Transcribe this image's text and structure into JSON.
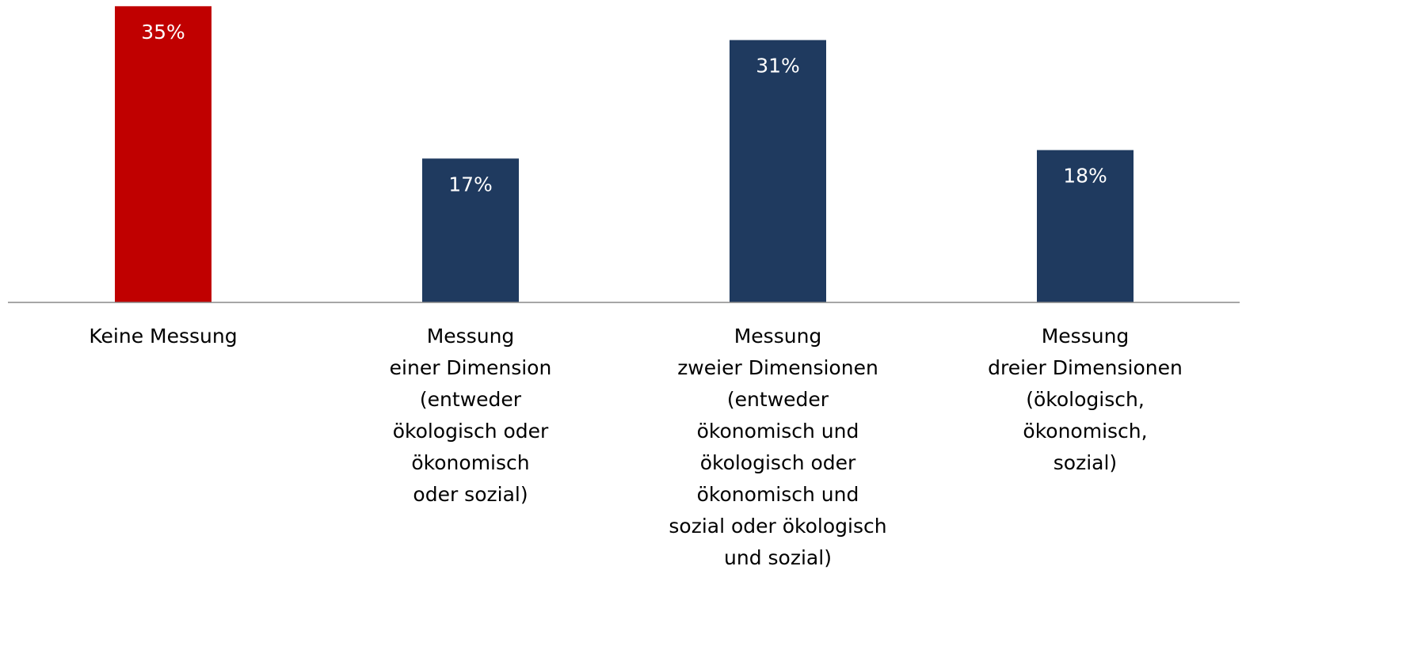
{
  "chart_data": {
    "type": "bar",
    "categories": [
      [
        "Keine Messung"
      ],
      [
        "Messung",
        "einer Dimension",
        "(entweder",
        "ökologisch oder",
        "ökonomisch",
        "oder sozial)"
      ],
      [
        "Messung",
        "zweier Dimensionen",
        "(entweder",
        "ökonomisch und",
        "ökologisch oder",
        "ökonomisch und",
        "sozial oder ökologisch",
        "und sozial)"
      ],
      [
        "Messung",
        "dreier Dimensionen",
        "(ökologisch,",
        "ökonomisch,",
        "sozial)"
      ]
    ],
    "values": [
      35,
      17,
      31,
      18
    ],
    "value_labels": [
      "35%",
      "17%",
      "31%",
      "18%"
    ],
    "colors": [
      "#c00000",
      "#1f3a5f",
      "#1f3a5f",
      "#1f3a5f"
    ]
  }
}
